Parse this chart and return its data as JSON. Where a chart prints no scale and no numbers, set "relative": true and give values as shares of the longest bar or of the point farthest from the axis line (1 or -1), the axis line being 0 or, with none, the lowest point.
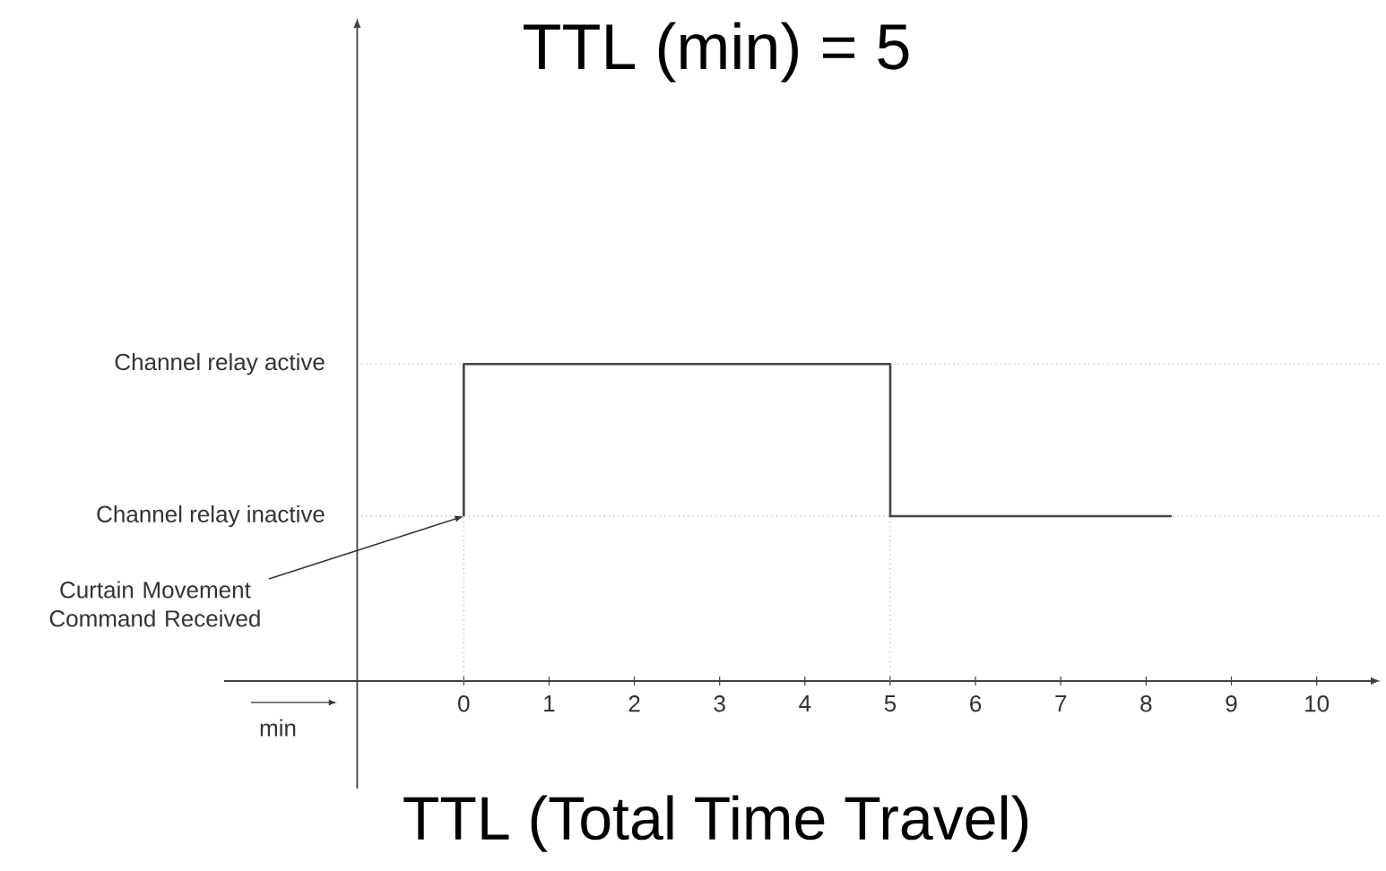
{
  "chart_data": {
    "type": "step",
    "title": "TTL (min) =  5",
    "xlabel": "TTL (Total Time Travel)",
    "relative": true,
    "x": [
      0,
      0,
      5,
      8.3
    ],
    "series": [
      {
        "color": "#444444",
        "values": [
          0.52,
          1,
          0.52,
          0.52
        ]
      }
    ],
    "xlim": [
      -2.81,
      10.75
    ],
    "xticks": [
      0,
      1,
      2,
      3,
      4,
      5,
      6,
      7,
      8,
      9,
      10
    ],
    "ref_lines": [
      {
        "axis": "y",
        "value": 1,
        "label": "Channel relay active",
        "color": "#aaaaaa",
        "line_style": "dotted"
      },
      {
        "axis": "y",
        "value": 0.52,
        "label": "Channel relay inactive",
        "color": "#aaaaaa",
        "line_style": "dotted"
      },
      {
        "axis": "x",
        "value": -1.25,
        "color": "#404040",
        "line_style": "solid"
      },
      {
        "axis": "x",
        "value": 0,
        "color": "#aaaaaa",
        "line_style": "dotted"
      },
      {
        "axis": "x",
        "value": 5,
        "color": "#aaaaaa",
        "line_style": "dotted"
      }
    ],
    "annotations": [
      {
        "text": "Curtain Movement Command Received",
        "x": 0,
        "y": 0.52
      },
      "min"
    ]
  }
}
